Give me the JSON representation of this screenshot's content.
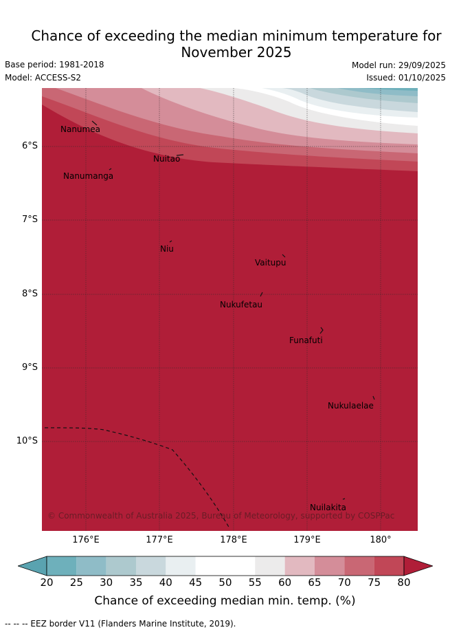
{
  "title_line1": "Chance of exceeding the median minimum temperature for",
  "title_line2": "November 2025",
  "base_period": "Base period: 1981-2018",
  "model": "Model: ACCESS-S2",
  "model_run": "Model run: 29/09/2025",
  "issued": "Issued: 01/10/2025",
  "latitude_labels": [
    "6°S",
    "7°S",
    "8°S",
    "9°S",
    "10°S"
  ],
  "longitude_labels": [
    "176°E",
    "177°E",
    "178°E",
    "179°E",
    "180°"
  ],
  "places": [
    "Nanumea",
    "Nuitao",
    "Nanumanga",
    "Niu",
    "Vaitupu",
    "Nukufetau",
    "Funafuti",
    "Nukulaelae",
    "Nuilakita"
  ],
  "copyright": "© Commonwealth of Australia 2025, Bureau of Meteorology, supported by COSPPac",
  "colorbar": {
    "ticks": [
      "20",
      "25",
      "30",
      "35",
      "40",
      "45",
      "50",
      "55",
      "60",
      "65",
      "70",
      "75",
      "80"
    ],
    "colors": [
      "#5aa3b0",
      "#6eb0bb",
      "#8fbcc7",
      "#adc9ce",
      "#c9d8dd",
      "#e9eff1",
      "#ffffff",
      "#ffffff",
      "#ecebeb",
      "#e2b9c0",
      "#d48d99",
      "#c96774",
      "#c14757",
      "#b01e38"
    ],
    "title": "Chance of exceeding median min. temp. (%)"
  },
  "footnote": "--  --  -- EEZ border V11 (Flanders Marine Institute, 2019)."
}
